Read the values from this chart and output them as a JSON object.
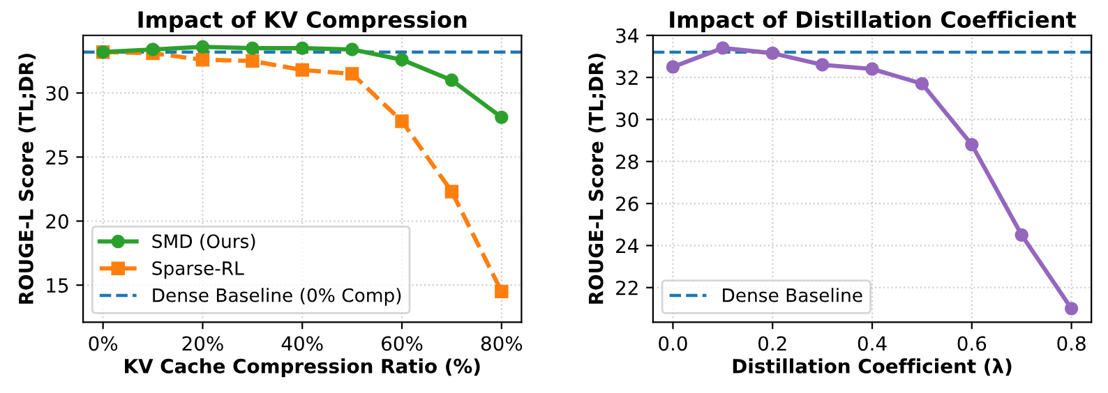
{
  "chart_data": [
    {
      "type": "line",
      "title": "Impact of KV Compression",
      "xlabel": "KV Cache Compression Ratio (%)",
      "ylabel": "ROUGE-L Score (TL;DR)",
      "x": [
        0,
        10,
        20,
        30,
        40,
        50,
        60,
        70,
        80
      ],
      "series": [
        {
          "name": "SMD (Ours)",
          "color": "#2ca02c",
          "marker": "circle",
          "line_style": "solid",
          "values": [
            33.2,
            33.4,
            33.6,
            33.5,
            33.5,
            33.4,
            32.6,
            31.0,
            28.1
          ]
        },
        {
          "name": "Sparse-RL",
          "color": "#ff7f0e",
          "marker": "square",
          "line_style": "dashed",
          "values": [
            33.2,
            33.1,
            32.6,
            32.5,
            31.8,
            31.5,
            27.8,
            22.3,
            14.5
          ]
        }
      ],
      "ref_lines": [
        {
          "axis": "y",
          "value": 33.2,
          "label": "Dense Baseline (0% Comp)",
          "color": "#1f77b4",
          "line_style": "dashed"
        }
      ],
      "xlim": [
        -4,
        84
      ],
      "xticks": [
        {
          "value": 0,
          "label": "0%"
        },
        {
          "value": 20,
          "label": "20%"
        },
        {
          "value": 40,
          "label": "40%"
        },
        {
          "value": 60,
          "label": "60%"
        },
        {
          "value": 80,
          "label": "80%"
        }
      ],
      "ylim": [
        12.1,
        34.5
      ],
      "yticks": [
        15,
        20,
        25,
        30
      ],
      "grid": true,
      "legend": "lower left"
    },
    {
      "type": "line",
      "title": "Impact of Distillation Coefficient",
      "xlabel": "Distillation Coefficient (λ)",
      "ylabel": "ROUGE-L Score (TL;DR)",
      "x": [
        0.0,
        0.1,
        0.2,
        0.3,
        0.4,
        0.5,
        0.6,
        0.7,
        0.8
      ],
      "series": [
        {
          "color": "#9467bd",
          "marker": "circle",
          "line_style": "solid",
          "values": [
            32.5,
            33.4,
            33.15,
            32.6,
            32.4,
            31.7,
            28.8,
            24.5,
            21.0
          ]
        }
      ],
      "ref_lines": [
        {
          "axis": "y",
          "value": 33.2,
          "label": "Dense Baseline",
          "color": "#1f77b4",
          "line_style": "dashed"
        }
      ],
      "xlim": [
        -0.04,
        0.84
      ],
      "xticks": [
        {
          "value": 0.0,
          "label": "0.0"
        },
        {
          "value": 0.2,
          "label": "0.2"
        },
        {
          "value": 0.4,
          "label": "0.4"
        },
        {
          "value": 0.6,
          "label": "0.6"
        },
        {
          "value": 0.8,
          "label": "0.8"
        }
      ],
      "ylim": [
        20.35,
        34
      ],
      "yticks": [
        22,
        24,
        26,
        28,
        30,
        32,
        34
      ],
      "grid": true,
      "legend": "lower left"
    }
  ]
}
